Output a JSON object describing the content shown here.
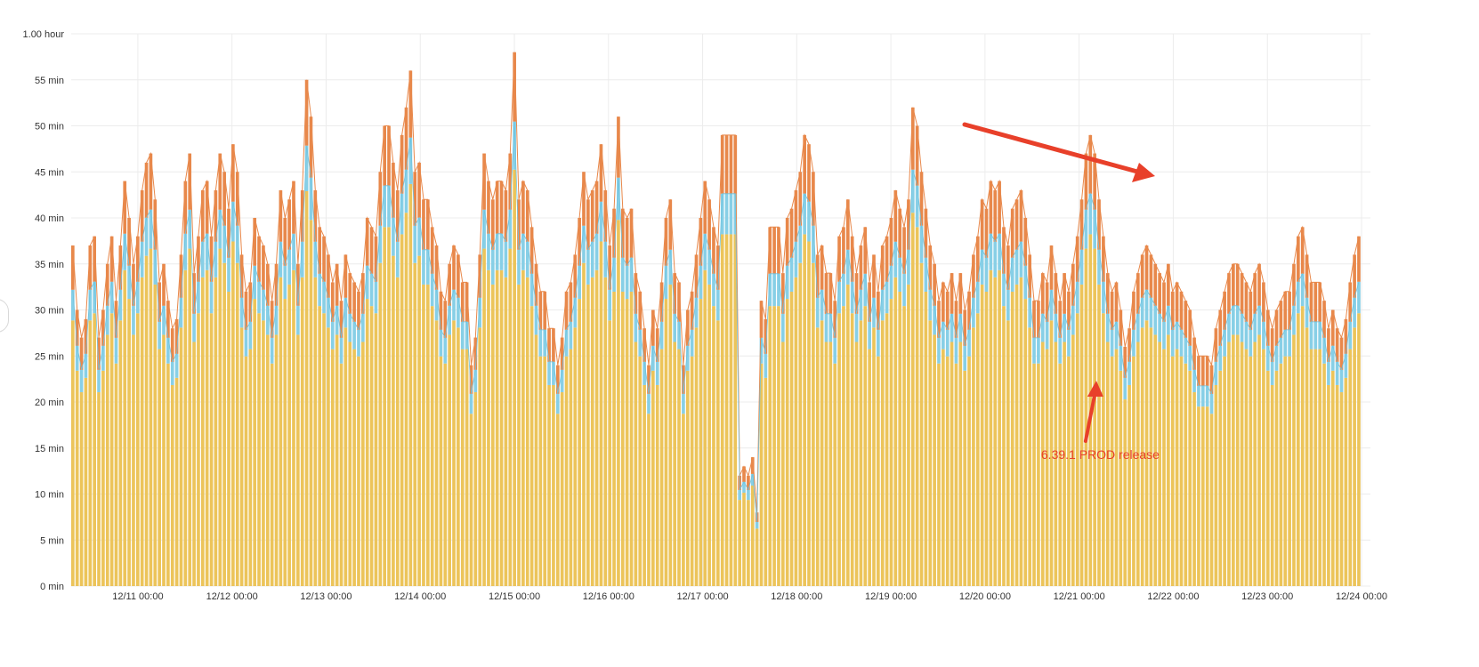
{
  "chart_data": {
    "type": "bar",
    "title": "",
    "xlabel": "",
    "ylabel": "",
    "stacked": true,
    "grid": true,
    "ylim_min": [
      0,
      60
    ],
    "y_ticks": [
      "0 min",
      "5 min",
      "10 min",
      "15 min",
      "20 min",
      "25 min",
      "30 min",
      "35 min",
      "40 min",
      "45 min",
      "50 min",
      "55 min",
      "1.00 hour"
    ],
    "x_ticks": [
      "12/11 00:00",
      "12/12 00:00",
      "12/13 00:00",
      "12/14 00:00",
      "12/15 00:00",
      "12/16 00:00",
      "12/17 00:00",
      "12/18 00:00",
      "12/19 00:00",
      "12/20 00:00",
      "12/21 00:00",
      "12/22 00:00",
      "12/23 00:00",
      "12/24 00:00"
    ],
    "x_range": [
      "12/10 07:00",
      "12/24 00:00"
    ],
    "bin_hours": 1,
    "colors": {
      "base": "#ecc45a",
      "mid": "#87cfe6",
      "top": "#e8884b"
    },
    "series_top_total_min": [
      37,
      30,
      27,
      29,
      37,
      38,
      27,
      30,
      35,
      38,
      31,
      37,
      44,
      40,
      35,
      38,
      43,
      46,
      47,
      42,
      33,
      35,
      31,
      28,
      29,
      36,
      44,
      47,
      34,
      38,
      43,
      44,
      38,
      43,
      47,
      45,
      41,
      48,
      45,
      36,
      32,
      33,
      40,
      38,
      37,
      35,
      31,
      35,
      43,
      40,
      42,
      44,
      35,
      43,
      55,
      51,
      43,
      39,
      38,
      36,
      33,
      35,
      31,
      36,
      34,
      33,
      32,
      34,
      40,
      39,
      38,
      45,
      50,
      50,
      46,
      43,
      49,
      52,
      56,
      45,
      46,
      42,
      42,
      39,
      37,
      32,
      31,
      35,
      37,
      36,
      33,
      33,
      24,
      27,
      36,
      47,
      44,
      42,
      44,
      44,
      43,
      47,
      58,
      42,
      44,
      43,
      39,
      35,
      32,
      32,
      28,
      28,
      24,
      27,
      32,
      33,
      36,
      40,
      45,
      42,
      43,
      44,
      48,
      43,
      37,
      41,
      51,
      41,
      40,
      41,
      34,
      32,
      28,
      24,
      30,
      28,
      33,
      40,
      42,
      34,
      33,
      24,
      30,
      32,
      36,
      40,
      44,
      42,
      39,
      37,
      49,
      49,
      49,
      49,
      12,
      13,
      12,
      14,
      8,
      31,
      29,
      39,
      39,
      39,
      34,
      40,
      41,
      43,
      45,
      49,
      48,
      45,
      36,
      37,
      34,
      34,
      31,
      38,
      39,
      42,
      38,
      34,
      37,
      39,
      33,
      36,
      32,
      37,
      38,
      40,
      43,
      41,
      39,
      42,
      52,
      50,
      45,
      41,
      37,
      35,
      31,
      33,
      32,
      34,
      31,
      34,
      30,
      32,
      36,
      38,
      42,
      41,
      44,
      43,
      44,
      39,
      37,
      41,
      42,
      43,
      40,
      36,
      31,
      31,
      34,
      33,
      37,
      34,
      31,
      34,
      32,
      35,
      38,
      42,
      47,
      49,
      47,
      42,
      38,
      34,
      32,
      33,
      30,
      26,
      28,
      32,
      34,
      36,
      37,
      36,
      35,
      34,
      33,
      35,
      32,
      33,
      32,
      31,
      30,
      27,
      25,
      25,
      25,
      24,
      28,
      30,
      32,
      34,
      35,
      35,
      34,
      33,
      32,
      34,
      35,
      33,
      30,
      28,
      30,
      31,
      32,
      32,
      35,
      38,
      39,
      36,
      33,
      33,
      33,
      31,
      28,
      30,
      28,
      27,
      29,
      33,
      36,
      38
    ],
    "annotations": [
      {
        "text": "6.39.1 PROD release",
        "at_x": "12/21 03:00",
        "note_y": "16 min"
      }
    ]
  }
}
